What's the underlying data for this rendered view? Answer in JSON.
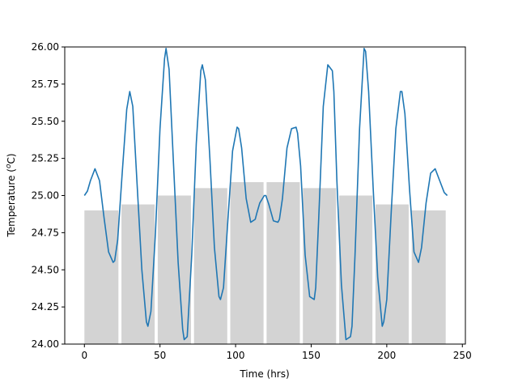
{
  "chart_data": {
    "type": "bar",
    "title": "",
    "xlabel": "Time (hrs)",
    "ylabel_main": "Temperature (",
    "ylabel_italic": "o",
    "ylabel_unit": "C)",
    "xlim": [
      -13,
      252
    ],
    "ylim": [
      24.0,
      26.0
    ],
    "xticks": [
      0,
      50,
      100,
      150,
      200,
      250
    ],
    "yticks": [
      24.0,
      24.25,
      24.5,
      24.75,
      25.0,
      25.25,
      25.5,
      25.75,
      26.0
    ],
    "ytick_labels": [
      "24.00",
      "24.25",
      "24.50",
      "24.75",
      "25.00",
      "25.25",
      "25.50",
      "25.75",
      "26.00"
    ],
    "bar_color": "#d3d3d3",
    "line_color": "#1f77b4",
    "bars": [
      {
        "start": 0,
        "end": 22.5,
        "value": 24.9
      },
      {
        "start": 24.5,
        "end": 46.5,
        "value": 24.94
      },
      {
        "start": 48.5,
        "end": 70.5,
        "value": 25.0
      },
      {
        "start": 72.5,
        "end": 94.5,
        "value": 25.05
      },
      {
        "start": 96.5,
        "end": 118.5,
        "value": 25.09
      },
      {
        "start": 120.5,
        "end": 142.5,
        "value": 25.09
      },
      {
        "start": 144.5,
        "end": 166.5,
        "value": 25.05
      },
      {
        "start": 168.5,
        "end": 190.5,
        "value": 25.0
      },
      {
        "start": 192.5,
        "end": 214.5,
        "value": 24.94
      },
      {
        "start": 216.5,
        "end": 239,
        "value": 24.9
      }
    ],
    "series": [
      {
        "x": [
          0,
          2,
          4,
          7,
          10,
          13,
          16,
          19,
          20,
          22,
          25,
          28,
          30,
          32,
          35,
          38,
          41,
          42,
          44,
          47,
          50,
          53,
          54,
          56,
          59,
          62,
          65,
          66,
          68,
          71,
          74,
          77,
          78,
          80,
          83,
          86,
          89,
          90,
          92,
          95,
          98,
          101,
          102,
          104,
          107,
          110,
          113,
          114,
          116,
          119,
          120,
          122,
          125,
          128,
          129,
          131,
          134,
          137,
          140,
          141,
          143,
          146,
          149,
          152,
          153,
          155,
          158,
          161,
          164,
          165,
          167,
          170,
          173,
          176,
          177,
          179,
          182,
          185,
          186,
          188,
          191,
          194,
          197,
          198,
          200,
          203,
          206,
          209,
          210,
          212,
          215,
          218,
          221,
          223,
          226,
          229,
          232,
          235,
          238,
          240
        ],
        "y": [
          25.0,
          25.03,
          25.1,
          25.18,
          25.1,
          24.85,
          24.62,
          24.55,
          24.56,
          24.7,
          25.15,
          25.58,
          25.7,
          25.6,
          25.05,
          24.5,
          24.15,
          24.12,
          24.22,
          24.75,
          25.45,
          25.92,
          25.99,
          25.85,
          25.2,
          24.55,
          24.1,
          24.03,
          24.05,
          24.6,
          25.35,
          25.84,
          25.88,
          25.78,
          25.25,
          24.65,
          24.32,
          24.3,
          24.38,
          24.85,
          25.3,
          25.46,
          25.45,
          25.32,
          24.98,
          24.82,
          24.84,
          24.88,
          24.95,
          25.0,
          25.0,
          24.94,
          24.83,
          24.82,
          24.84,
          24.98,
          25.32,
          25.45,
          25.46,
          25.42,
          25.2,
          24.6,
          24.32,
          24.3,
          24.38,
          24.85,
          25.6,
          25.88,
          25.84,
          25.7,
          25.1,
          24.4,
          24.03,
          24.05,
          24.12,
          24.6,
          25.45,
          25.99,
          25.97,
          25.7,
          25.05,
          24.45,
          24.12,
          24.15,
          24.3,
          24.9,
          25.45,
          25.7,
          25.7,
          25.55,
          25.05,
          24.62,
          24.55,
          24.65,
          24.95,
          25.15,
          25.18,
          25.1,
          25.02,
          25.0
        ]
      }
    ]
  }
}
